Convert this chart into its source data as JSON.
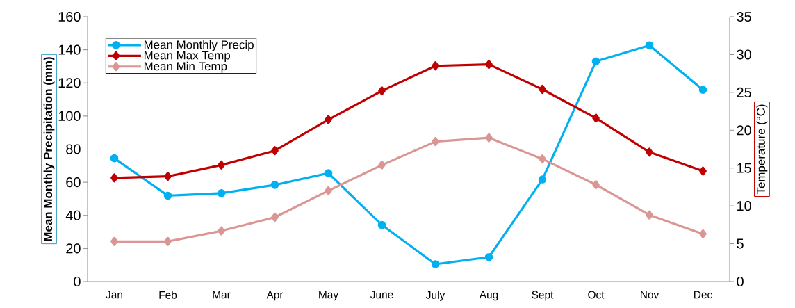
{
  "chart_data": {
    "type": "line",
    "categories": [
      "Jan",
      "Feb",
      "Mar",
      "Apr",
      "May",
      "June",
      "July",
      "Aug",
      "Sept",
      "Oct",
      "Nov",
      "Dec"
    ],
    "ylabel": "Mean Monthly Precipitation (mm)",
    "y2label": "Temperature (°C)",
    "ylim": [
      0,
      160
    ],
    "yticks": [
      0,
      20,
      40,
      60,
      80,
      100,
      120,
      140,
      160
    ],
    "y2lim": [
      0,
      35
    ],
    "y2ticks": [
      0,
      5,
      10,
      15,
      20,
      25,
      30,
      35
    ],
    "legend": "top left",
    "grid": false,
    "line_style": "solid",
    "series": [
      {
        "name": "Mean Monthly Precip",
        "color": "#00b0f0",
        "marker": "circle",
        "values": [
          74.5,
          51.9,
          53.4,
          58.4,
          65.5,
          34.2,
          10.5,
          14.8,
          61.7,
          133.0,
          142.7,
          115.8
        ]
      },
      {
        "name": "Mean Max Temp",
        "color": "#c00000",
        "marker": "diamond",
        "axis": "y2",
        "values": [
          13.7,
          13.9,
          15.4,
          17.3,
          21.4,
          25.2,
          28.5,
          28.7,
          25.4,
          21.6,
          17.1,
          14.6
        ]
      },
      {
        "name": "Mean Min Temp",
        "color": "#d99694",
        "marker": "diamond",
        "axis": "y2",
        "values": [
          5.3,
          5.3,
          6.7,
          8.5,
          12.0,
          15.4,
          18.5,
          19.0,
          16.2,
          12.8,
          8.8,
          6.3
        ]
      }
    ]
  }
}
